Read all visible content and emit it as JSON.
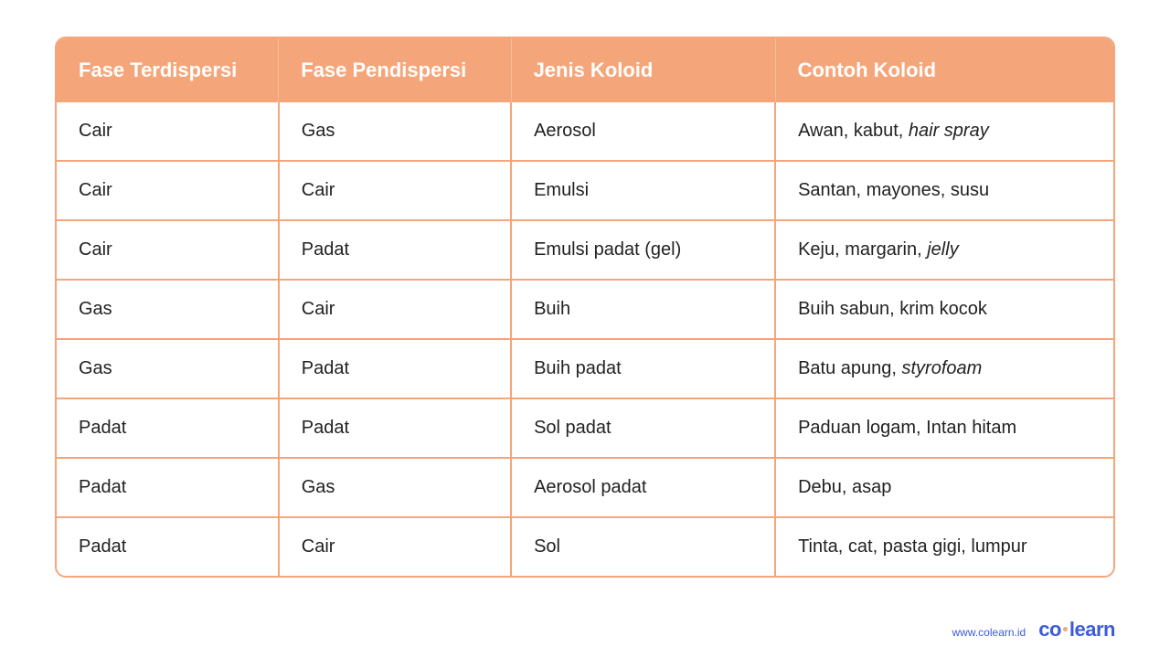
{
  "table": {
    "header_bg": "#f5a57a",
    "header_fg": "#ffffff",
    "border_color": "#f5a57a",
    "cell_bg": "#ffffff",
    "cell_fg": "#222222",
    "header_fontsize": 22,
    "cell_fontsize": 20,
    "columns": [
      "Fase Terdispersi",
      "Fase Pendispersi",
      "Jenis Koloid",
      "Contoh Koloid"
    ],
    "col_widths_pct": [
      21,
      22,
      25,
      32
    ],
    "rows": [
      {
        "c0": "Cair",
        "c1": "Gas",
        "c2": "Aerosol",
        "c3_pre": "Awan, kabut, ",
        "c3_it": "hair spray",
        "c3_post": ""
      },
      {
        "c0": "Cair",
        "c1": "Cair",
        "c2": "Emulsi",
        "c3_pre": "Santan, mayones, susu",
        "c3_it": "",
        "c3_post": ""
      },
      {
        "c0": "Cair",
        "c1": "Padat",
        "c2": "Emulsi padat (gel)",
        "c3_pre": "Keju, margarin, ",
        "c3_it": "jelly",
        "c3_post": ""
      },
      {
        "c0": "Gas",
        "c1": "Cair",
        "c2": "Buih",
        "c3_pre": "Buih sabun, krim kocok",
        "c3_it": "",
        "c3_post": ""
      },
      {
        "c0": "Gas",
        "c1": "Padat",
        "c2": "Buih padat",
        "c3_pre": "Batu apung, ",
        "c3_it": "styrofoam",
        "c3_post": ""
      },
      {
        "c0": "Padat",
        "c1": "Padat",
        "c2": "Sol padat",
        "c3_pre": "Paduan logam, Intan hitam",
        "c3_it": "",
        "c3_post": ""
      },
      {
        "c0": "Padat",
        "c1": "Gas",
        "c2": "Aerosol padat",
        "c3_pre": "Debu, asap",
        "c3_it": "",
        "c3_post": ""
      },
      {
        "c0": "Padat",
        "c1": "Cair",
        "c2": "Sol",
        "c3_pre": "Tinta, cat, pasta gigi, lumpur",
        "c3_it": "",
        "c3_post": ""
      }
    ]
  },
  "footer": {
    "url": "www.colearn.id",
    "logo_pre": "co",
    "logo_post": "learn"
  }
}
